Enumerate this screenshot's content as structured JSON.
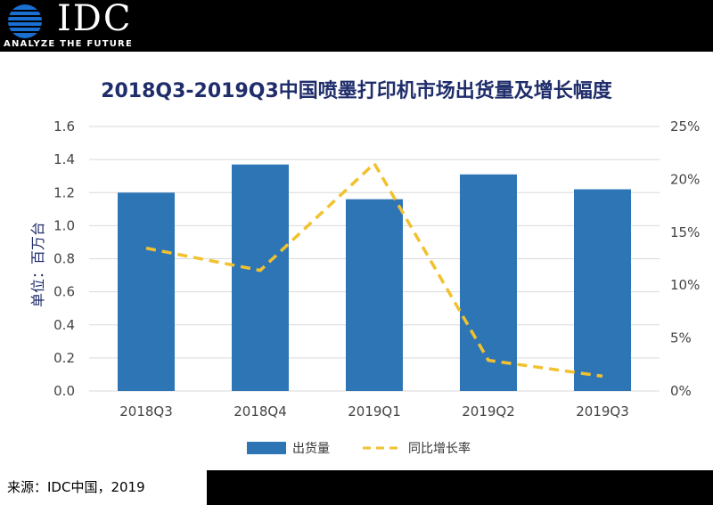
{
  "brand": {
    "name": "IDC",
    "tagline": "ANALYZE THE FUTURE"
  },
  "source": "来源：IDC中国，2019",
  "colors": {
    "bar": "#2E75B6",
    "line": "#F2C12E",
    "title": "#1f2d6b"
  },
  "chart_data": {
    "type": "bar",
    "title": "2018Q3-2019Q3中国喷墨打印机市场出货量及增长幅度",
    "ylabel": "单位：百万台",
    "categories": [
      "2018Q3",
      "2018Q4",
      "2019Q1",
      "2019Q2",
      "2019Q3"
    ],
    "ylim": [
      0,
      1.6
    ],
    "yticks": [
      "0.0",
      "0.2",
      "0.4",
      "0.6",
      "0.8",
      "1.0",
      "1.2",
      "1.4",
      "1.6"
    ],
    "y2lim": [
      0,
      25
    ],
    "y2ticks": [
      "0%",
      "5%",
      "10%",
      "15%",
      "20%",
      "25%"
    ],
    "grid": true,
    "legend": "bottom",
    "series": [
      {
        "name": "出货量",
        "type": "bar",
        "axis": "left",
        "values": [
          1.2,
          1.37,
          1.16,
          1.31,
          1.22
        ]
      },
      {
        "name": "同比增长率",
        "type": "line",
        "style": "dashed",
        "axis": "right",
        "values": [
          13.5,
          11.4,
          21.5,
          2.9,
          1.4
        ]
      }
    ]
  }
}
